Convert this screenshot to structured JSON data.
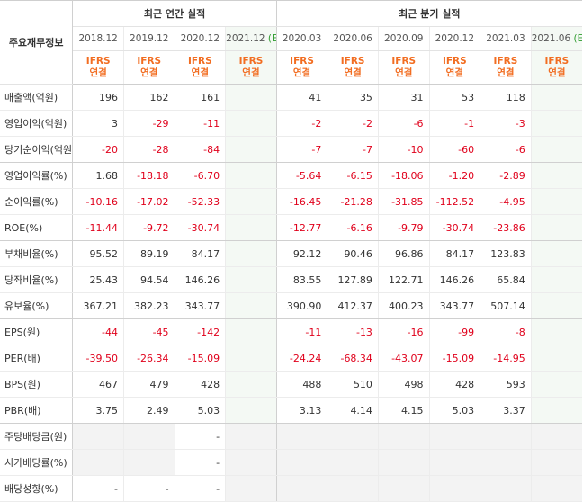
{
  "corner_label": "주요재무정보",
  "group_headers": {
    "annual": "최근 연간 실적",
    "quarterly": "최근 분기 실적"
  },
  "periods": [
    {
      "date": "2018.12",
      "est": ""
    },
    {
      "date": "2019.12",
      "est": ""
    },
    {
      "date": "2020.12",
      "est": ""
    },
    {
      "date": "2021.12",
      "est": "(E)"
    },
    {
      "date": "2020.03",
      "est": ""
    },
    {
      "date": "2020.06",
      "est": ""
    },
    {
      "date": "2020.09",
      "est": ""
    },
    {
      "date": "2020.12",
      "est": ""
    },
    {
      "date": "2021.03",
      "est": ""
    },
    {
      "date": "2021.06",
      "est": "(E)"
    }
  ],
  "ifrs_label": {
    "top": "IFRS",
    "bottom": "연결"
  },
  "rows": [
    {
      "label": "매출액(억원)",
      "values": [
        "196",
        "162",
        "161",
        "",
        "41",
        "35",
        "31",
        "53",
        "118",
        ""
      ]
    },
    {
      "label": "영업이익(억원)",
      "values": [
        "3",
        "-29",
        "-11",
        "",
        "-2",
        "-2",
        "-6",
        "-1",
        "-3",
        ""
      ]
    },
    {
      "label": "당기순이익(억원)",
      "values": [
        "-20",
        "-28",
        "-84",
        "",
        "-7",
        "-7",
        "-10",
        "-60",
        "-6",
        ""
      ]
    },
    {
      "label": "영업이익률(%)",
      "values": [
        "1.68",
        "-18.18",
        "-6.70",
        "",
        "-5.64",
        "-6.15",
        "-18.06",
        "-1.20",
        "-2.89",
        ""
      ]
    },
    {
      "label": "순이익률(%)",
      "values": [
        "-10.16",
        "-17.02",
        "-52.33",
        "",
        "-16.45",
        "-21.28",
        "-31.85",
        "-112.52",
        "-4.95",
        ""
      ]
    },
    {
      "label": "ROE(%)",
      "values": [
        "-11.44",
        "-9.72",
        "-30.74",
        "",
        "-12.77",
        "-6.16",
        "-9.79",
        "-30.74",
        "-23.86",
        ""
      ]
    },
    {
      "label": "부채비율(%)",
      "values": [
        "95.52",
        "89.19",
        "84.17",
        "",
        "92.12",
        "90.46",
        "96.86",
        "84.17",
        "123.83",
        ""
      ]
    },
    {
      "label": "당좌비율(%)",
      "values": [
        "25.43",
        "94.54",
        "146.26",
        "",
        "83.55",
        "127.89",
        "122.71",
        "146.26",
        "65.84",
        ""
      ]
    },
    {
      "label": "유보율(%)",
      "values": [
        "367.21",
        "382.23",
        "343.77",
        "",
        "390.90",
        "412.37",
        "400.23",
        "343.77",
        "507.14",
        ""
      ]
    },
    {
      "label": "EPS(원)",
      "values": [
        "-44",
        "-45",
        "-142",
        "",
        "-11",
        "-13",
        "-16",
        "-99",
        "-8",
        ""
      ]
    },
    {
      "label": "PER(배)",
      "values": [
        "-39.50",
        "-26.34",
        "-15.09",
        "",
        "-24.24",
        "-68.34",
        "-43.07",
        "-15.09",
        "-14.95",
        ""
      ]
    },
    {
      "label": "BPS(원)",
      "values": [
        "467",
        "479",
        "428",
        "",
        "488",
        "510",
        "498",
        "428",
        "593",
        ""
      ]
    },
    {
      "label": "PBR(배)",
      "values": [
        "3.75",
        "2.49",
        "5.03",
        "",
        "3.13",
        "4.14",
        "4.15",
        "5.03",
        "3.37",
        ""
      ]
    },
    {
      "label": "주당배당금(원)",
      "values": [
        "",
        "",
        "-",
        "",
        "",
        "",
        "",
        "",
        "",
        ""
      ]
    },
    {
      "label": "시가배당률(%)",
      "values": [
        "",
        "",
        "-",
        "",
        "",
        "",
        "",
        "",
        "",
        ""
      ]
    },
    {
      "label": "배당성향(%)",
      "values": [
        "-",
        "-",
        "-",
        "",
        "",
        "",
        "",
        "",
        "",
        ""
      ]
    }
  ],
  "colors": {
    "negative": "#e0001b",
    "ifrs": "#f26d21",
    "estimate_bg": "#f4f9f4",
    "estimate_mark": "#2e9b2e",
    "no_data_bg": "#f3f3f3"
  }
}
